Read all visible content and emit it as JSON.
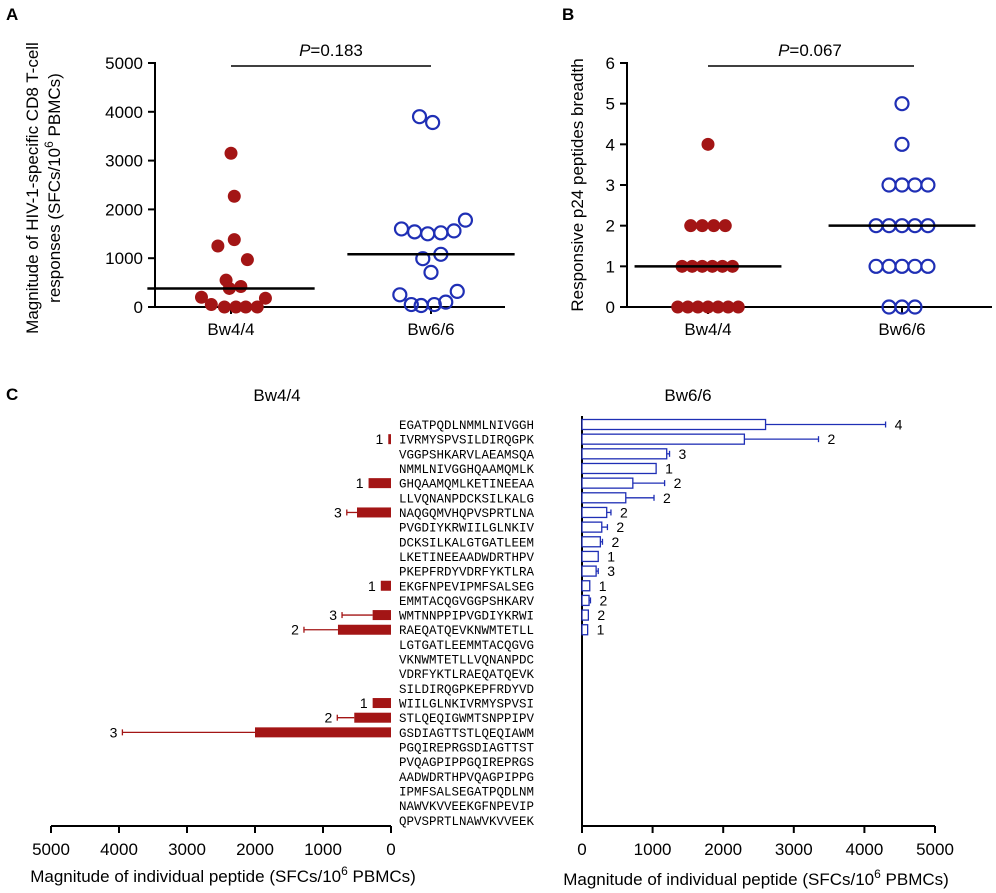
{
  "panels": {
    "A": {
      "letter": "A"
    },
    "B": {
      "letter": "B"
    },
    "C": {
      "letter": "C"
    }
  },
  "colors": {
    "bw4": "#a31515",
    "bw6": "#1f2fb5"
  },
  "chart_data": [
    {
      "id": "A",
      "type": "scatter",
      "title": "",
      "ylabel_line1": "Magnitude of HIV-1-specific CD8 T-cell",
      "ylabel_line2_pre": "responses  (SFCs/10",
      "ylabel_sup": "6",
      "ylabel_line2_post": " PBMCs)",
      "ylim": [
        0,
        5000
      ],
      "yticks": [
        0,
        1000,
        2000,
        3000,
        4000,
        5000
      ],
      "categories": [
        "Bw4/4",
        "Bw6/6"
      ],
      "pvalue_italic": "P",
      "pvalue_rest": "=0.183",
      "groups": [
        {
          "name": "Bw4/4",
          "style": "filled",
          "median": 380,
          "points": [
            [
              -0.36,
              200
            ],
            [
              -0.24,
              50
            ],
            [
              -0.08,
              0
            ],
            [
              0.06,
              0
            ],
            [
              0.18,
              0
            ],
            [
              0.32,
              0
            ],
            [
              0.42,
              180
            ],
            [
              -0.16,
              1250
            ],
            [
              0.04,
              1380
            ],
            [
              -0.06,
              550
            ],
            [
              0.2,
              970
            ],
            [
              -0.02,
              380
            ],
            [
              0.12,
              420
            ],
            [
              0.0,
              3150
            ],
            [
              0.04,
              2270
            ]
          ]
        },
        {
          "name": "Bw6/6",
          "style": "open",
          "median": 1080,
          "points": [
            [
              -0.38,
              250
            ],
            [
              -0.24,
              50
            ],
            [
              -0.12,
              30
            ],
            [
              0.04,
              50
            ],
            [
              0.18,
              100
            ],
            [
              0.32,
              320
            ],
            [
              -0.36,
              1600
            ],
            [
              -0.2,
              1540
            ],
            [
              -0.04,
              1500
            ],
            [
              0.12,
              1520
            ],
            [
              0.28,
              1560
            ],
            [
              0.42,
              1780
            ],
            [
              -0.1,
              990
            ],
            [
              0.12,
              1080
            ],
            [
              0.0,
              710
            ],
            [
              -0.14,
              3900
            ],
            [
              0.02,
              3780
            ]
          ]
        }
      ]
    },
    {
      "id": "B",
      "type": "scatter",
      "title": "",
      "ylabel": "Responsive p24 peptides breadth",
      "ylim": [
        0,
        6
      ],
      "yticks": [
        0,
        1,
        2,
        3,
        4,
        5,
        6
      ],
      "categories": [
        "Bw4/4",
        "Bw6/6"
      ],
      "pvalue_italic": "P",
      "pvalue_rest": "=0.067",
      "groups": [
        {
          "name": "Bw4/4",
          "style": "filled",
          "median": 1,
          "points": [
            [
              -0.42,
              0
            ],
            [
              -0.28,
              0
            ],
            [
              -0.14,
              0
            ],
            [
              0,
              0
            ],
            [
              0.14,
              0
            ],
            [
              0.28,
              0
            ],
            [
              0.42,
              0
            ],
            [
              -0.36,
              1
            ],
            [
              -0.22,
              1
            ],
            [
              -0.08,
              1
            ],
            [
              0.06,
              1
            ],
            [
              0.2,
              1
            ],
            [
              0.34,
              1
            ],
            [
              -0.24,
              2
            ],
            [
              -0.08,
              2
            ],
            [
              0.08,
              2
            ],
            [
              0.24,
              2
            ],
            [
              0,
              4
            ]
          ]
        },
        {
          "name": "Bw6/6",
          "style": "open",
          "median": 2,
          "points": [
            [
              -0.18,
              0
            ],
            [
              0,
              0
            ],
            [
              0.18,
              0
            ],
            [
              -0.36,
              1
            ],
            [
              -0.18,
              1
            ],
            [
              0,
              1
            ],
            [
              0.18,
              1
            ],
            [
              0.36,
              1
            ],
            [
              -0.36,
              2
            ],
            [
              -0.18,
              2
            ],
            [
              0,
              2
            ],
            [
              0.18,
              2
            ],
            [
              0.36,
              2
            ],
            [
              -0.18,
              3
            ],
            [
              0,
              3
            ],
            [
              0.18,
              3
            ],
            [
              0.36,
              3
            ],
            [
              0,
              4
            ],
            [
              0,
              5
            ]
          ]
        }
      ]
    },
    {
      "id": "C",
      "type": "bar",
      "orientation": "horizontal",
      "left_title": "Bw4/4",
      "right_title": "Bw6/6",
      "xlabel_pre": "Magnitude of individual peptide (SFCs/10",
      "xlabel_sup": "6",
      "xlabel_post": " PBMCs)",
      "left_xlim": [
        5000,
        0
      ],
      "right_xlim": [
        0,
        5000
      ],
      "xticks": [
        0,
        1000,
        2000,
        3000,
        4000,
        5000
      ],
      "peptides": [
        {
          "seq": "EGATPQDLNMMLNIVGGH",
          "bw4": null,
          "bw6": {
            "v": 2600,
            "e": 1700,
            "n": "4"
          }
        },
        {
          "seq": "IVRMYSPVSILDIRQGPK",
          "bw4": {
            "v": 40,
            "e": 0,
            "n": "1"
          },
          "bw6": {
            "v": 2300,
            "e": 1050,
            "n": "2"
          }
        },
        {
          "seq": "VGGPSHKARVLAEAMSQA",
          "bw4": null,
          "bw6": {
            "v": 1200,
            "e": 40,
            "n": "3"
          }
        },
        {
          "seq": "NMMLNIVGGHQAAMQMLK",
          "bw4": null,
          "bw6": {
            "v": 1050,
            "e": 0,
            "n": "1"
          }
        },
        {
          "seq": "GHQAAMQMLKETINEEAA",
          "bw4": {
            "v": 330,
            "e": 0,
            "n": "1"
          },
          "bw6": {
            "v": 720,
            "e": 450,
            "n": "2"
          }
        },
        {
          "seq": "LLVQNANPDCKSILKALG",
          "bw4": null,
          "bw6": {
            "v": 620,
            "e": 400,
            "n": "2"
          }
        },
        {
          "seq": "NAQGQMVHQPVSPRTLNA",
          "bw4": {
            "v": 500,
            "e": 150,
            "n": "3"
          },
          "bw6": {
            "v": 350,
            "e": 60,
            "n": "2"
          }
        },
        {
          "seq": "PVGDIYKRWIILGLNKIV",
          "bw4": null,
          "bw6": {
            "v": 280,
            "e": 80,
            "n": "2"
          }
        },
        {
          "seq": "DCKSILKALGTGATLEEM",
          "bw4": null,
          "bw6": {
            "v": 260,
            "e": 30,
            "n": "2"
          }
        },
        {
          "seq": "LKETINEEAADWDRTHPV",
          "bw4": null,
          "bw6": {
            "v": 230,
            "e": 0,
            "n": "1"
          }
        },
        {
          "seq": "PKEPFRDYVDRFYKTLRA",
          "bw4": null,
          "bw6": {
            "v": 200,
            "e": 30,
            "n": "3"
          }
        },
        {
          "seq": "EKGFNPEVIPMFSALSEG",
          "bw4": {
            "v": 150,
            "e": 0,
            "n": "1"
          },
          "bw6": {
            "v": 110,
            "e": 0,
            "n": "1"
          }
        },
        {
          "seq": "EMMTACQGVGGPSHKARV",
          "bw4": null,
          "bw6": {
            "v": 100,
            "e": 20,
            "n": "2"
          }
        },
        {
          "seq": "WMTNNPPIPVGDIYKRWI",
          "bw4": {
            "v": 270,
            "e": 450,
            "n": "3"
          },
          "bw6": {
            "v": 90,
            "e": 0,
            "n": "2"
          }
        },
        {
          "seq": "RAEQATQEVKNWMTETLL",
          "bw4": {
            "v": 780,
            "e": 500,
            "n": "2"
          },
          "bw6": {
            "v": 80,
            "e": 0,
            "n": "1"
          }
        },
        {
          "seq": "LGTGATLEEMMTACQGVG",
          "bw4": null,
          "bw6": null
        },
        {
          "seq": "VKNWMTETLLVQNANPDC",
          "bw4": null,
          "bw6": null
        },
        {
          "seq": "VDRFYKTLRAEQATQEVK",
          "bw4": null,
          "bw6": null
        },
        {
          "seq": "SILDIRQGPKEPFRDYVD",
          "bw4": null,
          "bw6": null
        },
        {
          "seq": "WIILGLNKIVRMYSPVSI",
          "bw4": {
            "v": 270,
            "e": 0,
            "n": "1"
          },
          "bw6": null
        },
        {
          "seq": "STLQEQIGWMTSNPPIPV",
          "bw4": {
            "v": 540,
            "e": 250,
            "n": "2"
          },
          "bw6": null
        },
        {
          "seq": "GSDIAGTTSTLQEQIAWM",
          "bw4": {
            "v": 2000,
            "e": 1950,
            "n": "3"
          },
          "bw6": null
        },
        {
          "seq": "PGQIREPRGSDIAGTTST",
          "bw4": null,
          "bw6": null
        },
        {
          "seq": "PVQAGPIPPGQIREPRGS",
          "bw4": null,
          "bw6": null
        },
        {
          "seq": "AADWDRTHPVQAGPIPPG",
          "bw4": null,
          "bw6": null
        },
        {
          "seq": "IPMFSALSEGATPQDLNM",
          "bw4": null,
          "bw6": null
        },
        {
          "seq": "NAWVKVVEEKGFNPEVIP",
          "bw4": null,
          "bw6": null
        },
        {
          "seq": "QPVSPRTLNAWVKVVEEK",
          "bw4": null,
          "bw6": null
        }
      ]
    }
  ]
}
